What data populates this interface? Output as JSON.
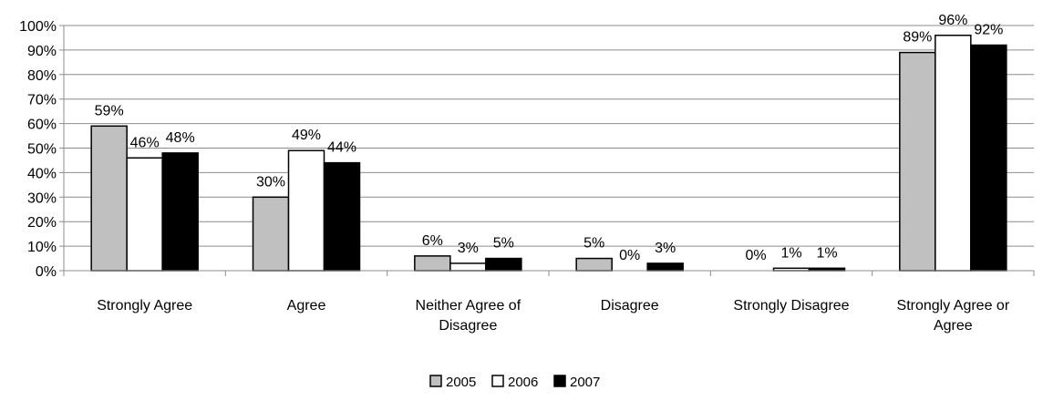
{
  "chart_data": {
    "type": "bar",
    "categories": [
      [
        "Strongly Agree"
      ],
      [
        "Agree"
      ],
      [
        "Neither Agree of",
        "Disagree"
      ],
      [
        "Disagree"
      ],
      [
        "Strongly Disagree"
      ],
      [
        "Strongly Agree or",
        "Agree"
      ]
    ],
    "series": [
      {
        "name": "2005",
        "color": "#c0c0c0",
        "values": [
          59,
          30,
          6,
          5,
          0,
          89
        ],
        "labels": [
          "59%",
          "30%",
          "6%",
          "5%",
          "0%",
          "89%"
        ]
      },
      {
        "name": "2006",
        "color": "#ffffff",
        "values": [
          46,
          49,
          3,
          0,
          1,
          96
        ],
        "labels": [
          "46%",
          "49%",
          "3%",
          "0%",
          "1%",
          "96%"
        ]
      },
      {
        "name": "2007",
        "color": "#000000",
        "values": [
          48,
          44,
          5,
          3,
          1,
          92
        ],
        "labels": [
          "48%",
          "44%",
          "5%",
          "3%",
          "1%",
          "92%"
        ]
      }
    ],
    "ylim": [
      0,
      100
    ],
    "yticks": [
      "0%",
      "10%",
      "20%",
      "30%",
      "40%",
      "50%",
      "60%",
      "70%",
      "80%",
      "90%",
      "100%"
    ],
    "title": "",
    "xlabel": "",
    "ylabel": "",
    "grid": true,
    "legend": "bottom-center"
  }
}
